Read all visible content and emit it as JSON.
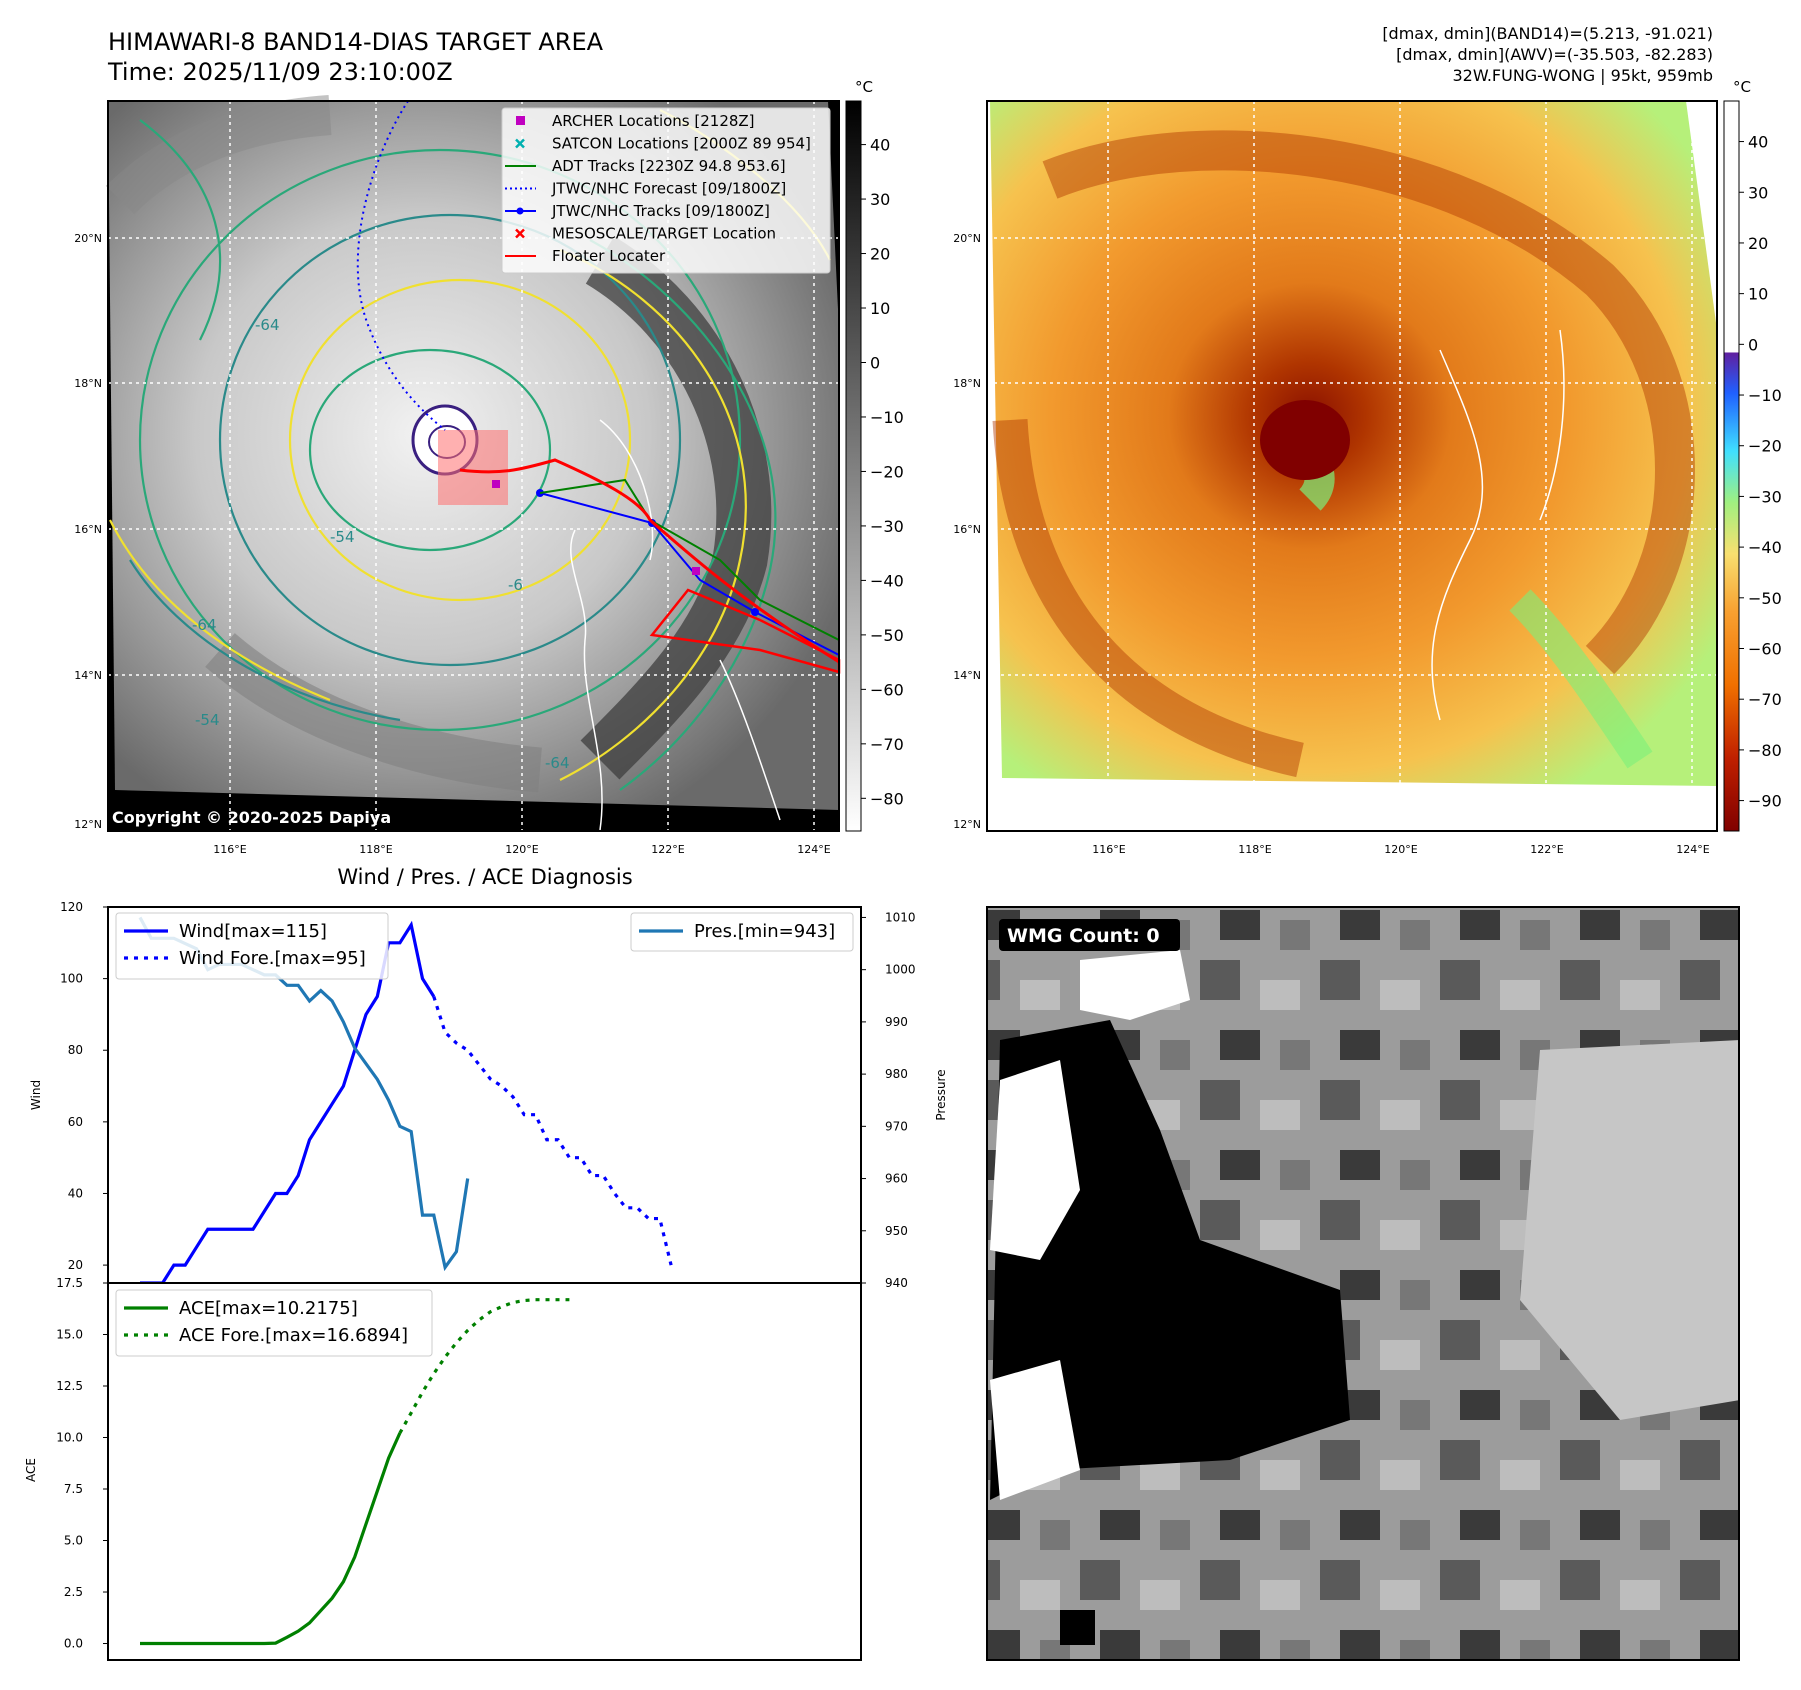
{
  "header": {
    "title": "HIMAWARI-8 BAND14-DIAS TARGET AREA",
    "time": "Time: 2025/11/09 23:10:00Z",
    "info1": "[dmax, dmin](BAND14)=(5.213, -91.021)",
    "info2": "[dmax, dmin](AWV)=(-35.503, -82.283)",
    "info3": "32W.FUNG-WONG | 95kt, 959mb"
  },
  "maps": {
    "lon_labels": [
      "116°E",
      "118°E",
      "120°E",
      "122°E",
      "124°E"
    ],
    "lat_labels": [
      "20°N",
      "18°N",
      "16°N",
      "14°N",
      "12°N"
    ],
    "copyright": "Copyright © 2020-2025 Dapiya",
    "unit": "°C",
    "cbar_left_ticks": [
      "40",
      "30",
      "20",
      "10",
      "0",
      "−10",
      "−20",
      "−30",
      "−40",
      "−50",
      "−60",
      "−70",
      "−80"
    ],
    "cbar_right_ticks": [
      "40",
      "30",
      "20",
      "10",
      "0",
      "−10",
      "−20",
      "−30",
      "−40",
      "−50",
      "−60",
      "−70",
      "−80",
      "−90"
    ],
    "contour_labels": [
      "-64",
      "-54",
      "-64",
      "-54",
      "-6",
      "-64"
    ],
    "legend": [
      {
        "label": "ARCHER Locations [2128Z]",
        "color": "#c000c0",
        "marker": "square"
      },
      {
        "label": "SATCON Locations [2000Z 89 954]",
        "color": "#00b0b0",
        "marker": "x"
      },
      {
        "label": "ADT Tracks [2230Z 94.8 953.6]",
        "color": "#008000",
        "marker": "line"
      },
      {
        "label": "JTWC/NHC Forecast [09/1800Z]",
        "color": "#0000ff",
        "marker": "dotted"
      },
      {
        "label": "JTWC/NHC Tracks [09/1800Z]",
        "color": "#0000ff",
        "marker": "line-dot"
      },
      {
        "label": "MESOSCALE/TARGET Location",
        "color": "#ff0000",
        "marker": "x"
      },
      {
        "label": "Floater Locater",
        "color": "#ff0000",
        "marker": "line"
      }
    ],
    "wmg_label": "WMG Count: 0"
  },
  "chart_data": [
    {
      "type": "line",
      "title": "Wind / Pres. / ACE Diagnosis",
      "ylabel": "Wind",
      "y2label": "Pressure",
      "ylim": [
        15,
        120
      ],
      "y2lim": [
        940,
        1012
      ],
      "yticks": [
        "120",
        "100",
        "80",
        "60",
        "40",
        "20"
      ],
      "y2ticks": [
        "1010",
        "1000",
        "990",
        "980",
        "970",
        "960",
        "950",
        "940"
      ],
      "series": [
        {
          "name": "Wind[max=115]",
          "axis": "left",
          "style": "solid",
          "color": "#0000ff",
          "values": [
            15,
            15,
            15,
            20,
            20,
            25,
            30,
            30,
            30,
            30,
            30,
            35,
            40,
            40,
            45,
            55,
            60,
            65,
            70,
            80,
            90,
            95,
            110,
            110,
            115,
            100,
            95
          ]
        },
        {
          "name": "Wind Fore.[max=95]",
          "axis": "left",
          "style": "dotted",
          "color": "#0000ff",
          "values": [
            95,
            85,
            82,
            80,
            76,
            72,
            70,
            67,
            62,
            62,
            55,
            55,
            50,
            50,
            45,
            45,
            40,
            36,
            36,
            33,
            33,
            20
          ]
        },
        {
          "name": "Pres.[min=943]",
          "axis": "right",
          "style": "solid",
          "color": "#1f77b4",
          "values": [
            1010,
            1006,
            1006,
            1006,
            1005,
            1004,
            1000,
            1001,
            1001,
            1001,
            1000,
            999,
            999,
            997,
            997,
            994,
            996,
            994,
            990,
            985,
            982,
            979,
            975,
            970,
            969,
            953,
            953,
            943,
            946,
            960
          ]
        }
      ]
    },
    {
      "type": "line",
      "ylabel": "ACE",
      "ylim": [
        -0.8,
        17.5
      ],
      "yticks": [
        "17.5",
        "15.0",
        "12.5",
        "10.0",
        "7.5",
        "5.0",
        "2.5",
        "0.0"
      ],
      "series": [
        {
          "name": "ACE[max=10.2175]",
          "style": "solid",
          "color": "#008000",
          "values": [
            0,
            0,
            0,
            0,
            0,
            0,
            0,
            0,
            0,
            0,
            0,
            0,
            0.02,
            0.3,
            0.6,
            1.0,
            1.6,
            2.2,
            3.0,
            4.2,
            5.8,
            7.4,
            9.0,
            10.2175
          ]
        },
        {
          "name": "ACE Fore.[max=16.6894]",
          "style": "dotted",
          "color": "#008000",
          "values": [
            10.2175,
            11.2,
            12.2,
            13.1,
            13.9,
            14.6,
            15.2,
            15.7,
            16.1,
            16.35,
            16.55,
            16.65,
            16.69,
            16.69,
            16.69,
            16.6894
          ]
        }
      ]
    }
  ]
}
